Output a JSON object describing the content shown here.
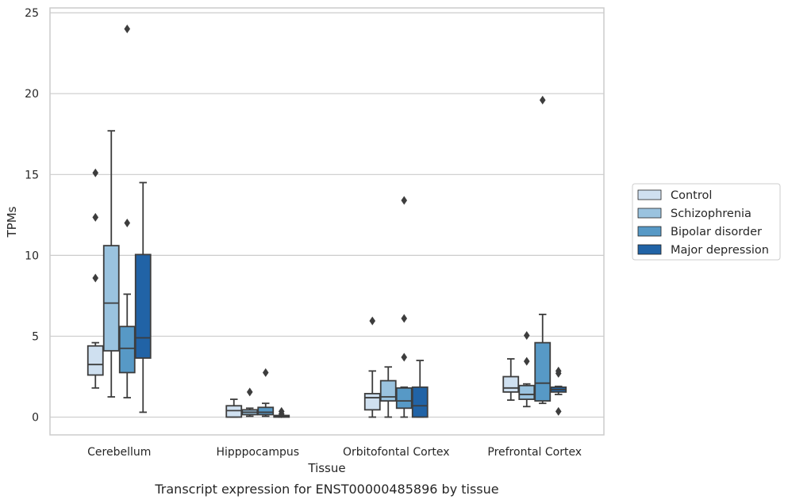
{
  "caption": "Transcript expression for ENST00000485896 by tissue",
  "chart_data": {
    "type": "boxplot",
    "xlabel": "Tissue",
    "ylabel": "TPMs",
    "ylim": [
      -1.1,
      25.3
    ],
    "yticks": [
      0,
      5,
      10,
      15,
      20,
      25
    ],
    "grid": "horizontal",
    "legend_position": "right",
    "categories": [
      "Cerebellum",
      "Hipppocampus",
      "Orbitofontal Cortex",
      "Prefrontal Cortex"
    ],
    "series": [
      {
        "name": "Control",
        "color": "#cfe0f0",
        "boxes": [
          {
            "whislo": 1.8,
            "q1": 2.6,
            "med": 3.25,
            "q3": 4.4,
            "whishi": 4.6,
            "fliers": [
              8.6,
              12.35,
              15.1
            ]
          },
          {
            "whislo": 0.0,
            "q1": 0.0,
            "med": 0.4,
            "q3": 0.7,
            "whishi": 1.1,
            "fliers": []
          },
          {
            "whislo": 0.0,
            "q1": 0.45,
            "med": 1.2,
            "q3": 1.45,
            "whishi": 2.85,
            "fliers": [
              5.95
            ]
          },
          {
            "whislo": 1.05,
            "q1": 1.55,
            "med": 1.8,
            "q3": 2.5,
            "whishi": 3.6,
            "fliers": []
          }
        ]
      },
      {
        "name": "Schizophrenia",
        "color": "#9ac3df",
        "boxes": [
          {
            "whislo": 1.25,
            "q1": 4.1,
            "med": 7.05,
            "q3": 10.6,
            "whishi": 17.7,
            "fliers": []
          },
          {
            "whislo": 0.05,
            "q1": 0.15,
            "med": 0.3,
            "q3": 0.45,
            "whishi": 0.55,
            "fliers": [
              1.55
            ]
          },
          {
            "whislo": 0.0,
            "q1": 1.0,
            "med": 1.25,
            "q3": 2.25,
            "whishi": 3.1,
            "fliers": []
          },
          {
            "whislo": 0.65,
            "q1": 1.1,
            "med": 1.4,
            "q3": 1.95,
            "whishi": 2.05,
            "fliers": [
              3.45,
              5.05
            ]
          }
        ]
      },
      {
        "name": "Bipolar disorder",
        "color": "#5799c6",
        "boxes": [
          {
            "whislo": 1.2,
            "q1": 2.75,
            "med": 4.25,
            "q3": 5.6,
            "whishi": 7.6,
            "fliers": [
              12.0,
              24.0
            ]
          },
          {
            "whislo": 0.05,
            "q1": 0.15,
            "med": 0.3,
            "q3": 0.6,
            "whishi": 0.85,
            "fliers": [
              2.75
            ]
          },
          {
            "whislo": 0.0,
            "q1": 0.55,
            "med": 1.0,
            "q3": 1.8,
            "whishi": 1.85,
            "fliers": [
              3.7,
              6.1,
              13.4
            ]
          },
          {
            "whislo": 0.85,
            "q1": 1.0,
            "med": 2.1,
            "q3": 4.6,
            "whishi": 6.35,
            "fliers": [
              19.6
            ]
          }
        ]
      },
      {
        "name": "Major depression",
        "color": "#2163a6",
        "boxes": [
          {
            "whislo": 0.3,
            "q1": 3.65,
            "med": 4.9,
            "q3": 10.05,
            "whishi": 14.5,
            "fliers": []
          },
          {
            "whislo": 0.0,
            "q1": 0.0,
            "med": 0.05,
            "q3": 0.1,
            "whishi": 0.1,
            "fliers": [
              0.2,
              0.35
            ]
          },
          {
            "whislo": 0.0,
            "q1": 0.0,
            "med": 0.7,
            "q3": 1.85,
            "whishi": 3.5,
            "fliers": []
          },
          {
            "whislo": 1.4,
            "q1": 1.55,
            "med": 1.7,
            "q3": 1.85,
            "whishi": 1.9,
            "fliers": [
              0.35,
              2.7,
              2.85
            ]
          }
        ]
      }
    ]
  }
}
